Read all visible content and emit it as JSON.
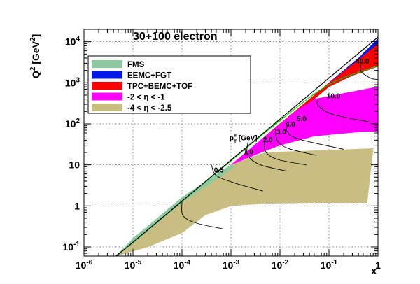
{
  "chart_data": {
    "type": "area",
    "title": "30+100 electron",
    "xlabel": "x",
    "ylabel": "Q",
    "ylabel_sup": "2",
    "ylabel_unit_open": " [GeV",
    "ylabel_unit_sup": "2",
    "ylabel_unit_close": "]",
    "x_scale": "log",
    "y_scale": "log",
    "xlim": [
      1e-06,
      1
    ],
    "ylim": [
      0.06,
      20000
    ],
    "grid": true,
    "legend_position": "top-left",
    "x_ticks": [
      {
        "v": 1e-06,
        "base": "10",
        "exp": "-6"
      },
      {
        "v": 1e-05,
        "base": "10",
        "exp": "-5"
      },
      {
        "v": 0.0001,
        "base": "10",
        "exp": "-4"
      },
      {
        "v": 0.001,
        "base": "10",
        "exp": "-3"
      },
      {
        "v": 0.01,
        "base": "10",
        "exp": "-2"
      },
      {
        "v": 0.1,
        "base": "10",
        "exp": "-1"
      },
      {
        "v": 1,
        "base": "1",
        "exp": ""
      }
    ],
    "y_ticks": [
      {
        "v": 0.1,
        "base": "10",
        "exp": "-1"
      },
      {
        "v": 1,
        "base": "1",
        "exp": ""
      },
      {
        "v": 10,
        "base": "10",
        "exp": ""
      },
      {
        "v": 100,
        "base": "10",
        "exp": "2"
      },
      {
        "v": 1000,
        "base": "10",
        "exp": "3"
      },
      {
        "v": 10000,
        "base": "10",
        "exp": "4"
      }
    ],
    "legend": [
      {
        "label": "FMS",
        "color": "#8cc8a0"
      },
      {
        "label": "EEMC+FGT",
        "color": "#0018e8"
      },
      {
        "label": "TPC+BEMC+TOF",
        "color": "#ff0000"
      },
      {
        "label": "-2 < η < -1",
        "color": "#ff00ff"
      },
      {
        "label": "-4 < η < -2.5",
        "color": "#c8be82"
      }
    ],
    "regions": [
      {
        "name": "-4 < η < -2.5",
        "color": "#c8be82",
        "points": [
          [
            4.5e-06,
            0.06
          ],
          [
            1e-05,
            0.16
          ],
          [
            0.0001,
            1.6
          ],
          [
            0.001,
            10
          ],
          [
            0.005,
            20
          ],
          [
            0.8,
            25
          ],
          [
            0.6,
            1.2
          ],
          [
            0.05,
            1.2
          ],
          [
            0.005,
            1.15
          ],
          [
            0.001,
            1
          ],
          [
            0.0003,
            0.6
          ],
          [
            0.0001,
            0.22
          ],
          [
            2e-05,
            0.1
          ],
          [
            4.5e-06,
            0.06
          ]
        ]
      },
      {
        "name": "-2 < η < -1",
        "color": "#ff00ff",
        "points": [
          [
            0.001,
            10
          ],
          [
            0.005,
            50
          ],
          [
            0.02,
            200
          ],
          [
            0.05,
            400
          ],
          [
            1,
            800
          ],
          [
            1,
            65
          ],
          [
            0.5,
            65
          ],
          [
            0.05,
            50
          ],
          [
            0.01,
            30
          ],
          [
            0.005,
            22
          ],
          [
            0.001,
            10
          ]
        ]
      },
      {
        "name": "TPC+BEMC+TOF",
        "color": "#ff0000",
        "points": [
          [
            0.005,
            50
          ],
          [
            0.02,
            200
          ],
          [
            0.1,
            1000
          ],
          [
            0.4,
            4000
          ],
          [
            1,
            10000
          ],
          [
            1,
            2500
          ],
          [
            0.3,
            1500
          ],
          [
            0.1,
            800
          ],
          [
            0.05,
            400
          ],
          [
            0.02,
            200
          ],
          [
            0.005,
            50
          ]
        ]
      },
      {
        "name": "EEMC+FGT",
        "color": "#0018e8",
        "points": [
          [
            0.1,
            1000
          ],
          [
            0.4,
            4000
          ],
          [
            1,
            12000
          ],
          [
            1,
            9000
          ],
          [
            0.3,
            2800
          ],
          [
            0.1,
            1000
          ]
        ]
      },
      {
        "name": "FMS",
        "color": "#8cc8a0",
        "points": [
          [
            4.5e-06,
            0.06
          ],
          [
            1e-05,
            0.16
          ],
          [
            0.0001,
            1.6
          ],
          [
            0.001,
            10
          ],
          [
            0.0012,
            9
          ],
          [
            0.0001,
            1.2
          ],
          [
            1e-05,
            0.12
          ],
          [
            4.5e-06,
            0.06
          ]
        ]
      }
    ],
    "kinematic_limit": {
      "color": "#000000",
      "points": [
        [
          4.5e-06,
          0.06
        ],
        [
          1e-05,
          0.13
        ],
        [
          0.0001,
          1.3
        ],
        [
          0.001,
          13
        ],
        [
          0.01,
          130
        ],
        [
          0.1,
          1300
        ],
        [
          1,
          13000
        ]
      ]
    },
    "green_curve": {
      "color": "#00c800",
      "points": [
        [
          4.5e-06,
          0.06
        ],
        [
          1e-05,
          0.13
        ],
        [
          0.0001,
          1.3
        ],
        [
          0.001,
          12.5
        ],
        [
          0.01,
          120
        ],
        [
          0.1,
          900
        ],
        [
          1,
          2600
        ]
      ]
    },
    "energy_curves": [
      {
        "label": "0.5",
        "label_pos": [
          0.00045,
          6.5
        ],
        "points": [
          [
            0.00066,
            0.28
          ],
          [
            0.0002,
            0.38
          ],
          [
            0.000105,
            0.58
          ],
          [
            0.0001,
            1.3
          ]
        ]
      },
      {
        "label": "1.0",
        "label_pos": [
          0.0018,
          18
        ],
        "points": [
          [
            0.0045,
            2.3
          ],
          [
            0.0012,
            3.6
          ],
          [
            0.0005,
            5.5
          ],
          [
            0.0004,
            10
          ]
        ]
      },
      {
        "label": "2.0",
        "label_pos": [
          0.0045,
          36
        ],
        "points": [
          [
            0.014,
            7
          ],
          [
            0.004,
            10
          ],
          [
            0.0022,
            17
          ],
          [
            0.0022,
            35
          ]
        ]
      },
      {
        "label": "3.0",
        "label_pos": [
          0.0085,
          55
        ],
        "points": [
          [
            0.035,
            10
          ],
          [
            0.009,
            13.5
          ],
          [
            0.005,
            22
          ],
          [
            0.005,
            50
          ]
        ]
      },
      {
        "label": "4.0",
        "label_pos": [
          0.013,
          85
        ],
        "points": [
          [
            0.055,
            17
          ],
          [
            0.015,
            25
          ],
          [
            0.009,
            38
          ],
          [
            0.008,
            75
          ]
        ]
      },
      {
        "label": "5.0",
        "label_pos": [
          0.022,
          118
        ],
        "points": [
          [
            0.2,
            24
          ],
          [
            0.025,
            42
          ],
          [
            0.014,
            65
          ],
          [
            0.015,
            105
          ]
        ]
      },
      {
        "label": "10.0",
        "label_pos": [
          0.09,
          420
        ],
        "points": [
          [
            0.7,
            110
          ],
          [
            0.12,
            170
          ],
          [
            0.06,
            280
          ],
          [
            0.06,
            400
          ]
        ]
      },
      {
        "label": "40.0",
        "label_pos": [
          0.35,
          2900
        ],
        "points": [
          [
            1,
            1200
          ],
          [
            0.7,
            1300
          ],
          [
            0.45,
            1900
          ],
          [
            0.45,
            2800
          ]
        ]
      }
    ],
    "annotations": [
      {
        "text": "p",
        "sub": "T",
        "sup": "e",
        "suffix": " [GeV]",
        "pos": [
          0.0018,
          40
        ]
      }
    ]
  }
}
